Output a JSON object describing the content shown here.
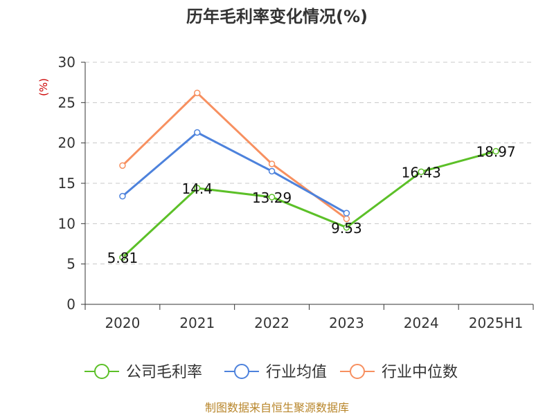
{
  "chart_data": {
    "type": "line",
    "title": "历年毛利率变化情况(%)",
    "xlabel": "",
    "ylabel": "(%)",
    "categories": [
      "2020",
      "2021",
      "2022",
      "2023",
      "2024",
      "2025H1"
    ],
    "ylim": [
      0,
      30
    ],
    "yticks": [
      0,
      5,
      10,
      15,
      20,
      25,
      30
    ],
    "grid": true,
    "legend_position": "bottom",
    "series": [
      {
        "name": "公司毛利率",
        "color": "#5cc028",
        "values": [
          5.81,
          14.4,
          13.29,
          9.53,
          16.43,
          18.97
        ],
        "labels": [
          "5.81",
          "14.4",
          "13.29",
          "9.53",
          "16.43",
          "18.97"
        ]
      },
      {
        "name": "行业均值",
        "color": "#4d82dc",
        "values": [
          13.4,
          21.3,
          16.5,
          11.3,
          null,
          null
        ]
      },
      {
        "name": "行业中位数",
        "color": "#f79060",
        "values": [
          17.2,
          26.2,
          17.4,
          10.6,
          null,
          null
        ]
      }
    ],
    "source": "制图数据来自恒生聚源数据库"
  }
}
